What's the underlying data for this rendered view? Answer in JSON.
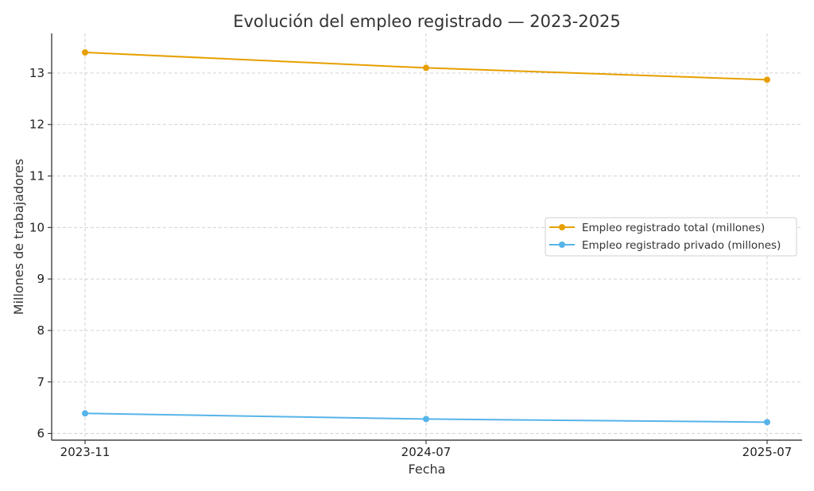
{
  "chart_data": {
    "type": "line",
    "title": "Evolución del empleo registrado — 2023-2025",
    "xlabel": "Fecha",
    "ylabel": "Millones de trabajadores",
    "categories": [
      "2023-11",
      "2024-07",
      "2025-07"
    ],
    "yticks": [
      6,
      7,
      8,
      9,
      10,
      11,
      12,
      13
    ],
    "ylim": [
      5.87,
      13.77
    ],
    "grid": true,
    "legend_position": "center-right",
    "series": [
      {
        "name": "Empleo registrado total (millones)",
        "color": "#E69F00",
        "values": [
          13.4,
          13.1,
          12.87
        ]
      },
      {
        "name": "Empleo registrado privado (millones)",
        "color": "#56B4E9",
        "values": [
          6.39,
          6.28,
          6.22
        ]
      }
    ]
  }
}
